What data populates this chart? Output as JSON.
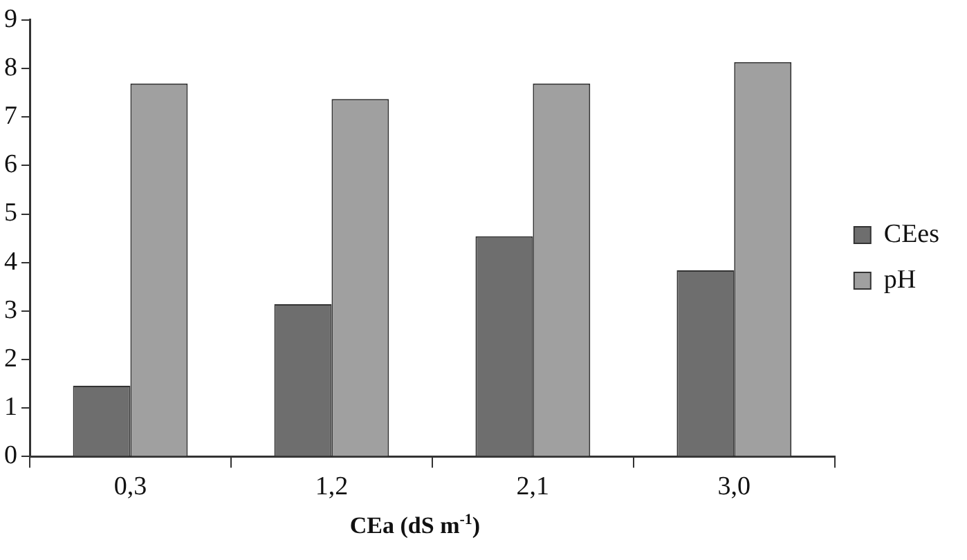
{
  "chart_data": {
    "type": "bar",
    "xlabel": "CEa (dS m$^{-1}$)",
    "categories": [
      "0,3",
      "1,2",
      "2,1",
      "3,0"
    ],
    "series": [
      {
        "name": "CEes",
        "color": "#6e6e6e",
        "values": [
          1.46,
          3.14,
          4.54,
          3.84
        ]
      },
      {
        "name": "pH",
        "color": "#a0a0a0",
        "values": [
          7.69,
          7.37,
          7.69,
          8.13
        ]
      }
    ],
    "ylim": [
      0,
      9
    ],
    "yticks": [
      0,
      1,
      2,
      3,
      4,
      5,
      6,
      7,
      8,
      9
    ],
    "grid": false,
    "legend": "right"
  }
}
